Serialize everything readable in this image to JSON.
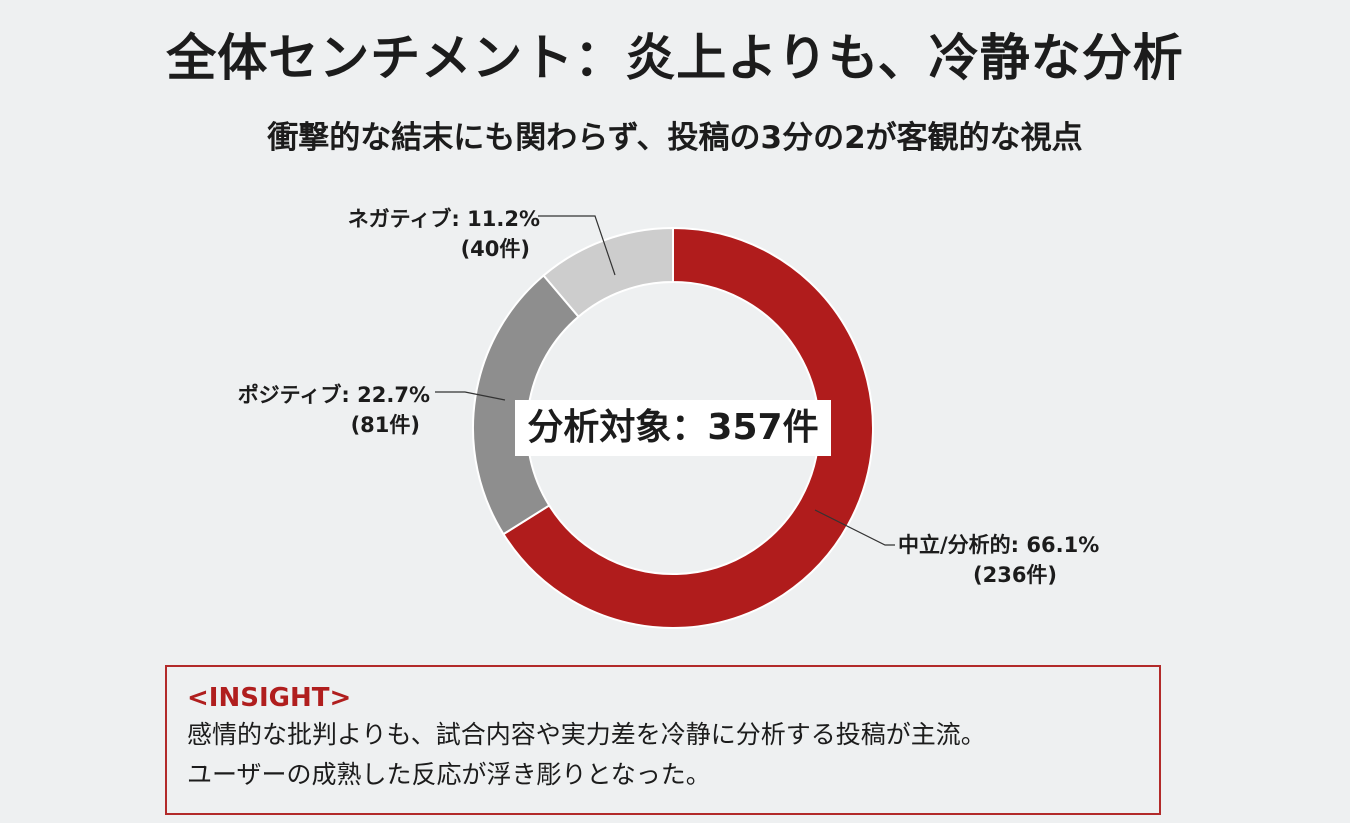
{
  "title": "全体センチメント：炎上よりも、冷静な分析",
  "subtitle": "衝撃的な結末にも関わらず、投稿の3分の2が客観的な視点",
  "chart_data": {
    "type": "pie",
    "donut": true,
    "center_label": "分析対象：357件",
    "total": 357,
    "slices": [
      {
        "name": "中立/分析的",
        "percent": 66.1,
        "count": 236,
        "label": "中立/分析的: 66.1%",
        "count_label": "(236件)",
        "color": "#b01c1c"
      },
      {
        "name": "ポジティブ",
        "percent": 22.7,
        "count": 81,
        "label": "ポジティブ: 22.7%",
        "count_label": "(81件)",
        "color": "#8e8e8e"
      },
      {
        "name": "ネガティブ",
        "percent": 11.2,
        "count": 40,
        "label": "ネガティブ: 11.2%",
        "count_label": "(40件)",
        "color": "#cdcdcd"
      }
    ]
  },
  "insight": {
    "heading": "<INSIGHT>",
    "line1": "感情的な批判よりも、試合内容や実力差を冷静に分析する投稿が主流。",
    "line2": "ユーザーの成熟した反応が浮き彫りとなった。"
  }
}
